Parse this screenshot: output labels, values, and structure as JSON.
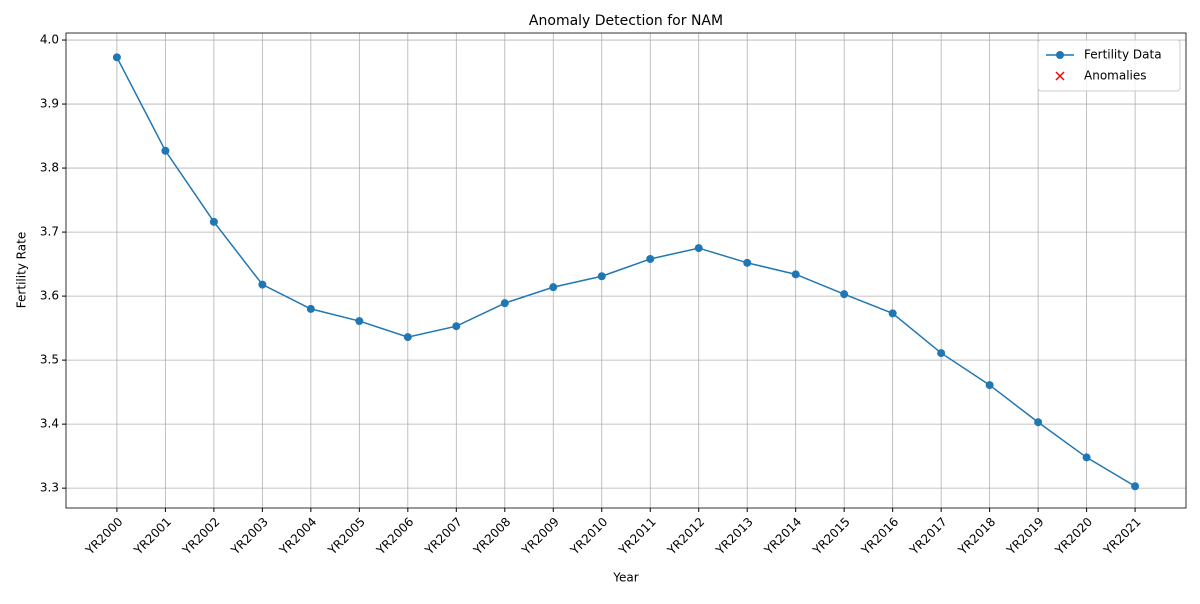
{
  "chart_data": {
    "type": "line",
    "title": "Anomaly Detection for NAM",
    "x_label": "Year",
    "y_label": "Fertility Rate",
    "categories": [
      "YR2000",
      "YR2001",
      "YR2002",
      "YR2003",
      "YR2004",
      "YR2005",
      "YR2006",
      "YR2007",
      "YR2008",
      "YR2009",
      "YR2010",
      "YR2011",
      "YR2012",
      "YR2013",
      "YR2014",
      "YR2015",
      "YR2016",
      "YR2017",
      "YR2018",
      "YR2019",
      "YR2020",
      "YR2021"
    ],
    "series": [
      {
        "name": "Fertility Data",
        "color": "#1f77b4",
        "marker": "o",
        "values": [
          3.973,
          3.827,
          3.716,
          3.618,
          3.58,
          3.561,
          3.536,
          3.553,
          3.589,
          3.614,
          3.631,
          3.658,
          3.675,
          3.652,
          3.634,
          3.603,
          3.573,
          3.511,
          3.461,
          3.403,
          3.348,
          3.303
        ]
      },
      {
        "name": "Anomalies",
        "color": "#ff0000",
        "marker": "x",
        "values": [
          null,
          null,
          null,
          null,
          null,
          null,
          null,
          null,
          null,
          null,
          null,
          null,
          null,
          null,
          null,
          null,
          null,
          null,
          null,
          null,
          null,
          null
        ]
      }
    ],
    "ylim": [
      3.269,
      4.011
    ],
    "yticks": [
      {
        "value": 3.3,
        "label": "3.3"
      },
      3.4,
      3.5,
      3.6,
      3.7,
      3.8,
      3.9,
      {
        "value": 4.0,
        "label": "4.0"
      }
    ],
    "grid": true,
    "legend": "upper right"
  }
}
